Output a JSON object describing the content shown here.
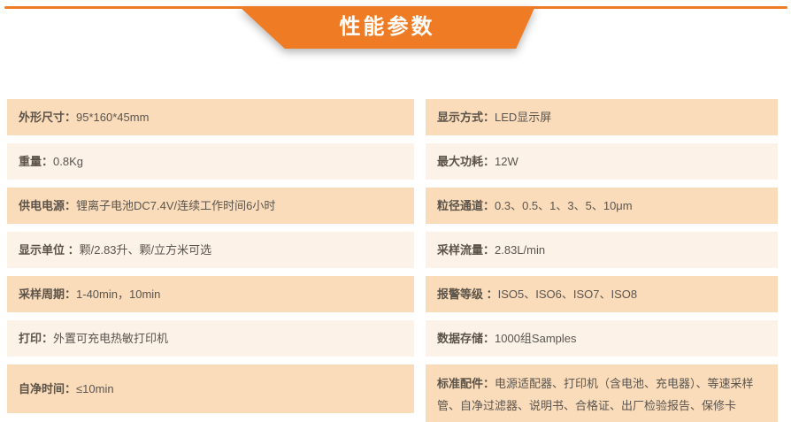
{
  "header": {
    "title": "性能参数"
  },
  "theme": {
    "accent": "#EF7C24",
    "row_dark_bg": "#FADCBB",
    "row_light_bg": "#FDF2E8",
    "label_color": "#5B5248",
    "value_color": "#5A554F",
    "banner_text": "#FFFFFF"
  },
  "columns": {
    "left": [
      {
        "label": "外形尺寸：",
        "value": "95*160*45mm"
      },
      {
        "label": "重量：",
        "value": "0.8Kg"
      },
      {
        "label": "供电电源：",
        "value": "锂离子电池DC7.4V/连续工作时间6小时"
      },
      {
        "label": "显示单位 ：",
        "value": "颗/2.83升、颗/立方米可选"
      },
      {
        "label": "采样周期：",
        "value": "1-40min，10min"
      },
      {
        "label": "打印：",
        "value": "外置可充电热敏打印机"
      },
      {
        "label": "自净时间：",
        "value": "≤10min"
      }
    ],
    "right": [
      {
        "label": "显示方式：",
        "value": "LED显示屏"
      },
      {
        "label": "最大功耗：",
        "value": "12W"
      },
      {
        "label": "粒径通道：",
        "value": "0.3、0.5、1、3、5、10μm"
      },
      {
        "label": "采样流量：",
        "value": "2.83L/min"
      },
      {
        "label": "报警等级 ：",
        "value": "ISO5、ISO6、ISO7、ISO8"
      },
      {
        "label": "数据存储：",
        "value": "1000组Samples"
      },
      {
        "label": "标准配件：",
        "value": "电源适配器、打印机（含电池、充电器）、等速采样管、自净过滤器、说明书、合格证、出厂检验报告、保修卡"
      }
    ]
  }
}
